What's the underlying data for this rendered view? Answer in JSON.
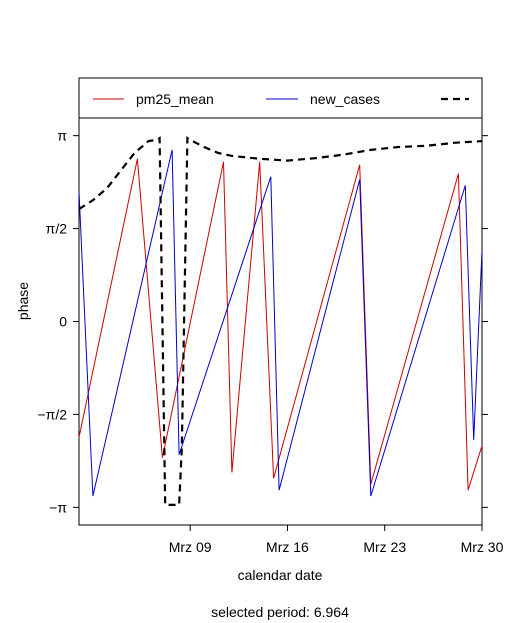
{
  "chart_data": {
    "type": "line",
    "xlabel": "calendar date",
    "ylabel": "phase",
    "footer_prefix": "selected period:",
    "footer_value": "6.964",
    "footer": "selected period: 6.964",
    "x_range": [
      "2020-03-01",
      "2020-03-30"
    ],
    "x_ticks": [
      {
        "date": "2020-03-09",
        "label": "Mrz 09"
      },
      {
        "date": "2020-03-16",
        "label": "Mrz 16"
      },
      {
        "date": "2020-03-23",
        "label": "Mrz 23"
      },
      {
        "date": "2020-03-30",
        "label": "Mrz 30"
      }
    ],
    "ylim": [
      -3.44,
      3.44
    ],
    "y_ticks": [
      {
        "value": 3.14159,
        "label": "π"
      },
      {
        "value": 1.5708,
        "label": "π/2"
      },
      {
        "value": 0,
        "label": "0"
      },
      {
        "value": -1.5708,
        "label": "−π/2"
      },
      {
        "value": -3.14159,
        "label": "−π"
      }
    ],
    "grid": false,
    "legend_position": "top",
    "series": [
      {
        "name": "pm25_mean",
        "color": "#cc0000",
        "dash": "solid",
        "points": [
          [
            "2020-03-01",
            -1.96
          ],
          [
            "2020-03-05.2",
            2.75
          ],
          [
            "2020-03-07",
            -2.3
          ],
          [
            "2020-03-11.4",
            2.7
          ],
          [
            "2020-03-12",
            -2.55
          ],
          [
            "2020-03-14",
            2.7
          ],
          [
            "2020-03-15",
            -2.65
          ],
          [
            "2020-03-21.2",
            2.65
          ],
          [
            "2020-03-22",
            -2.75
          ],
          [
            "2020-03-28.3",
            2.5
          ],
          [
            "2020-03-29",
            -2.85
          ],
          [
            "2020-03-30",
            -2.1
          ]
        ]
      },
      {
        "name": "new_cases",
        "color": "#0000cc",
        "dash": "solid",
        "points": [
          [
            "2020-03-01",
            2.2
          ],
          [
            "2020-03-02",
            -2.95
          ],
          [
            "2020-03-07.7",
            2.9
          ],
          [
            "2020-03-08.2",
            -2.25
          ],
          [
            "2020-03-14.8",
            2.45
          ],
          [
            "2020-03-15.4",
            -2.85
          ],
          [
            "2020-03-21.2",
            2.4
          ],
          [
            "2020-03-22",
            -2.95
          ],
          [
            "2020-03-28.8",
            2.3
          ],
          [
            "2020-03-29.4",
            -2.0
          ],
          [
            "2020-03-30",
            1.2
          ]
        ]
      },
      {
        "name": "",
        "color": "#000000",
        "dash": "dashed",
        "points": [
          [
            "2020-03-01",
            1.9
          ],
          [
            "2020-03-02",
            2.05
          ],
          [
            "2020-03-03",
            2.25
          ],
          [
            "2020-03-04",
            2.55
          ],
          [
            "2020-03-05",
            2.85
          ],
          [
            "2020-03-06",
            3.05
          ],
          [
            "2020-03-06.6",
            3.07
          ],
          [
            "2020-03-06.8",
            3.1
          ],
          [
            "2020-03-07.2",
            -3.1
          ],
          [
            "2020-03-07.6",
            -3.1
          ],
          [
            "2020-03-07.9",
            -3.1
          ],
          [
            "2020-03-08.2",
            -3.1
          ],
          [
            "2020-03-08.4",
            -2.15
          ],
          [
            "2020-03-08.8",
            3.1
          ],
          [
            "2020-03-09",
            3.07
          ],
          [
            "2020-03-10",
            2.95
          ],
          [
            "2020-03-11",
            2.85
          ],
          [
            "2020-03-12",
            2.8
          ],
          [
            "2020-03-14",
            2.75
          ],
          [
            "2020-03-16",
            2.72
          ],
          [
            "2020-03-18",
            2.76
          ],
          [
            "2020-03-20",
            2.82
          ],
          [
            "2020-03-22",
            2.9
          ],
          [
            "2020-03-24",
            2.95
          ],
          [
            "2020-03-26",
            2.97
          ],
          [
            "2020-03-28",
            3.02
          ],
          [
            "2020-03-30",
            3.05
          ]
        ]
      }
    ]
  }
}
